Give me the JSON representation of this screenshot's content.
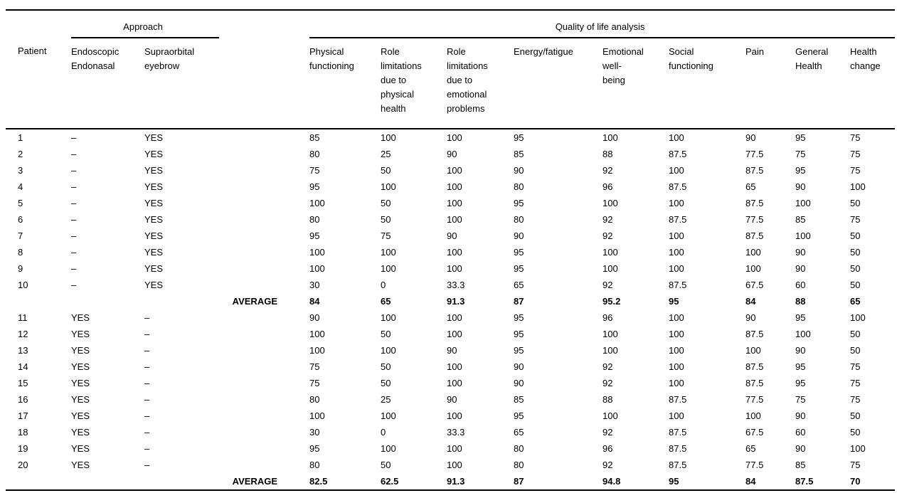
{
  "page": {
    "background_color": "#ffffff",
    "text_color": "#000000",
    "rule_color": "#000000"
  },
  "table": {
    "group_headers": {
      "approach": "Approach",
      "quality_of_life": "Quality of life analysis"
    },
    "columns": [
      "Patient",
      "Endoscopic\nEndonasal",
      "Supraorbital\neyebrow",
      "",
      "Physical\nfunctioning",
      "Role\nlimitations\ndue to\nphysical\nhealth",
      "Role\nlimitations\ndue to\nemotional\nproblems",
      "Energy/fatigue",
      "Emotional\nwell-\nbeing",
      "Social\nfunctioning",
      "Pain",
      "General\nHealth",
      "Health\nchange"
    ],
    "average_label": "AVERAGE",
    "rows": [
      {
        "type": "data",
        "patient": "1",
        "endoscopic_endonasal": "–",
        "supraorbital_eyebrow": "YES",
        "scores": [
          "85",
          "100",
          "100",
          "95",
          "100",
          "100",
          "90",
          "95",
          "75"
        ]
      },
      {
        "type": "data",
        "patient": "2",
        "endoscopic_endonasal": "–",
        "supraorbital_eyebrow": "YES",
        "scores": [
          "80",
          "25",
          "90",
          "85",
          "88",
          "87.5",
          "77.5",
          "75",
          "75"
        ]
      },
      {
        "type": "data",
        "patient": "3",
        "endoscopic_endonasal": "–",
        "supraorbital_eyebrow": "YES",
        "scores": [
          "75",
          "50",
          "100",
          "90",
          "92",
          "100",
          "87.5",
          "95",
          "75"
        ]
      },
      {
        "type": "data",
        "patient": "4",
        "endoscopic_endonasal": "–",
        "supraorbital_eyebrow": "YES",
        "scores": [
          "95",
          "100",
          "100",
          "80",
          "96",
          "87.5",
          "65",
          "90",
          "100"
        ]
      },
      {
        "type": "data",
        "patient": "5",
        "endoscopic_endonasal": "–",
        "supraorbital_eyebrow": "YES",
        "scores": [
          "100",
          "50",
          "100",
          "95",
          "100",
          "100",
          "87.5",
          "100",
          "50"
        ]
      },
      {
        "type": "data",
        "patient": "6",
        "endoscopic_endonasal": "–",
        "supraorbital_eyebrow": "YES",
        "scores": [
          "80",
          "50",
          "100",
          "80",
          "92",
          "87.5",
          "77.5",
          "85",
          "75"
        ]
      },
      {
        "type": "data",
        "patient": "7",
        "endoscopic_endonasal": "–",
        "supraorbital_eyebrow": "YES",
        "scores": [
          "95",
          "75",
          "90",
          "90",
          "92",
          "100",
          "87.5",
          "100",
          "50"
        ]
      },
      {
        "type": "data",
        "patient": "8",
        "endoscopic_endonasal": "–",
        "supraorbital_eyebrow": "YES",
        "scores": [
          "100",
          "100",
          "100",
          "95",
          "100",
          "100",
          "100",
          "90",
          "50"
        ]
      },
      {
        "type": "data",
        "patient": "9",
        "endoscopic_endonasal": "–",
        "supraorbital_eyebrow": "YES",
        "scores": [
          "100",
          "100",
          "100",
          "95",
          "100",
          "100",
          "100",
          "90",
          "50"
        ]
      },
      {
        "type": "data",
        "patient": "10",
        "endoscopic_endonasal": "–",
        "supraorbital_eyebrow": "YES",
        "scores": [
          "30",
          "0",
          "33.3",
          "65",
          "92",
          "87.5",
          "67.5",
          "60",
          "50"
        ]
      },
      {
        "type": "average",
        "label": "AVERAGE",
        "scores": [
          "84",
          "65",
          "91.3",
          "87",
          "95.2",
          "95",
          "84",
          "88",
          "65"
        ]
      },
      {
        "type": "data",
        "patient": "11",
        "endoscopic_endonasal": "YES",
        "supraorbital_eyebrow": "–",
        "scores": [
          "90",
          "100",
          "100",
          "95",
          "96",
          "100",
          "90",
          "95",
          "100"
        ]
      },
      {
        "type": "data",
        "patient": "12",
        "endoscopic_endonasal": "YES",
        "supraorbital_eyebrow": "–",
        "scores": [
          "100",
          "50",
          "100",
          "95",
          "100",
          "100",
          "87.5",
          "100",
          "50"
        ]
      },
      {
        "type": "data",
        "patient": "13",
        "endoscopic_endonasal": "YES",
        "supraorbital_eyebrow": "–",
        "scores": [
          "100",
          "100",
          "90",
          "95",
          "100",
          "100",
          "100",
          "90",
          "50"
        ]
      },
      {
        "type": "data",
        "patient": "14",
        "endoscopic_endonasal": "YES",
        "supraorbital_eyebrow": "–",
        "scores": [
          "75",
          "50",
          "100",
          "90",
          "92",
          "100",
          "87.5",
          "95",
          "75"
        ]
      },
      {
        "type": "data",
        "patient": "15",
        "endoscopic_endonasal": "YES",
        "supraorbital_eyebrow": "–",
        "scores": [
          "75",
          "50",
          "100",
          "90",
          "92",
          "100",
          "87.5",
          "95",
          "75"
        ]
      },
      {
        "type": "data",
        "patient": "16",
        "endoscopic_endonasal": "YES",
        "supraorbital_eyebrow": "–",
        "scores": [
          "80",
          "25",
          "90",
          "85",
          "88",
          "87.5",
          "77.5",
          "75",
          "75"
        ]
      },
      {
        "type": "data",
        "patient": "17",
        "endoscopic_endonasal": "YES",
        "supraorbital_eyebrow": "–",
        "scores": [
          "100",
          "100",
          "100",
          "95",
          "100",
          "100",
          "100",
          "90",
          "50"
        ]
      },
      {
        "type": "data",
        "patient": "18",
        "endoscopic_endonasal": "YES",
        "supraorbital_eyebrow": "–",
        "scores": [
          "30",
          "0",
          "33.3",
          "65",
          "92",
          "87.5",
          "67.5",
          "60",
          "50"
        ]
      },
      {
        "type": "data",
        "patient": "19",
        "endoscopic_endonasal": "YES",
        "supraorbital_eyebrow": "–",
        "scores": [
          "95",
          "100",
          "100",
          "80",
          "96",
          "87.5",
          "65",
          "90",
          "100"
        ]
      },
      {
        "type": "data",
        "patient": "20",
        "endoscopic_endonasal": "YES",
        "supraorbital_eyebrow": "–",
        "scores": [
          "80",
          "50",
          "100",
          "80",
          "92",
          "87.5",
          "77.5",
          "85",
          "75"
        ]
      },
      {
        "type": "average",
        "label": "AVERAGE",
        "scores": [
          "82.5",
          "62.5",
          "91.3",
          "87",
          "94.8",
          "95",
          "84",
          "87.5",
          "70"
        ]
      }
    ]
  }
}
